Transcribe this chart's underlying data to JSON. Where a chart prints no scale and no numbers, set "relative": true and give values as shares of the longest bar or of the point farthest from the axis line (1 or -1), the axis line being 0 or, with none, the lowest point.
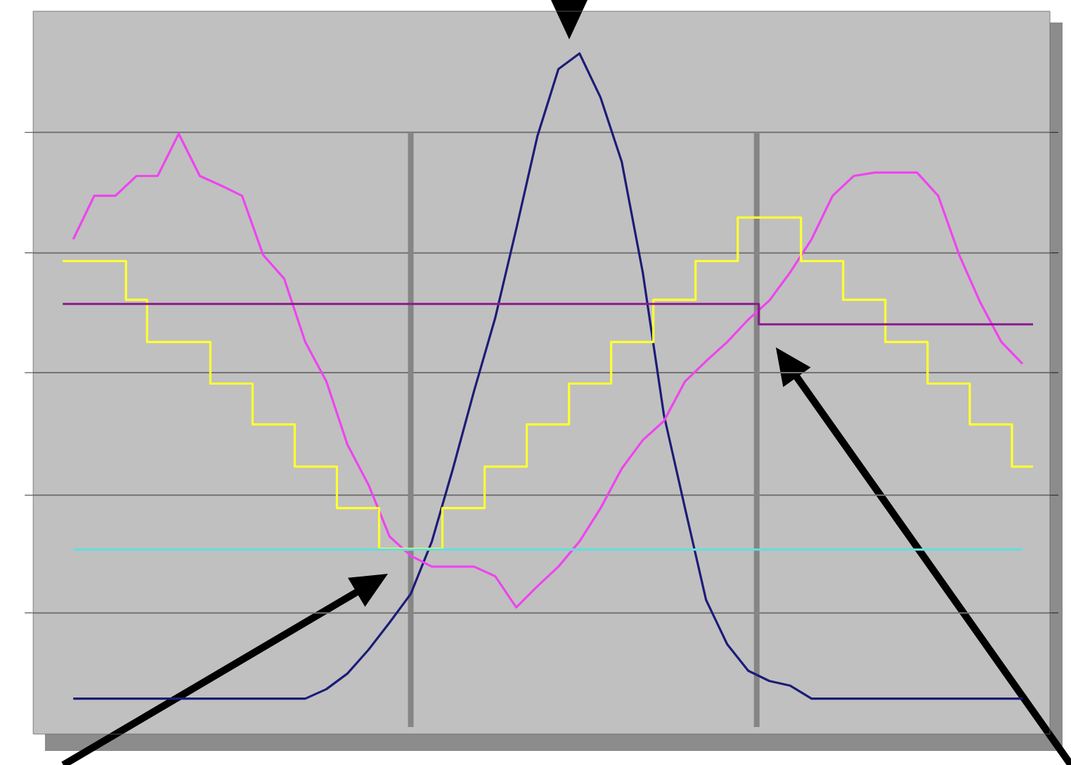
{
  "chart_data": {
    "type": "line",
    "relative": true,
    "grid": "y",
    "categories": [
      null,
      null,
      null,
      null,
      null,
      null,
      null,
      null,
      null,
      null,
      null,
      null,
      null,
      null,
      null,
      null,
      null,
      null,
      null,
      null,
      null,
      null,
      null,
      null,
      null,
      null,
      null,
      null,
      null,
      null,
      null,
      null,
      null,
      null,
      null,
      null,
      null,
      null,
      null,
      null,
      null,
      null,
      null,
      null,
      null,
      null
    ],
    "series": [
      {
        "color": "#1c1c78",
        "values": [
          0.052,
          0.052,
          0.052,
          0.052,
          0.052,
          0.052,
          0.052,
          0.052,
          0.052,
          0.052,
          0.052,
          0.052,
          0.066,
          0.089,
          0.124,
          0.164,
          0.206,
          0.283,
          0.39,
          0.504,
          0.611,
          0.742,
          0.878,
          0.977,
          1,
          0.935,
          0.841,
          0.678,
          0.469,
          0.332,
          0.197,
          0.132,
          0.093,
          0.078,
          0.071,
          0.052,
          0.052,
          0.052,
          0.052,
          0.052,
          0.052,
          0.052,
          0.052,
          0.052,
          0.052,
          0.052
        ]
      },
      {
        "color": "#ee44ee",
        "values": [
          0.727,
          0.791,
          0.791,
          0.82,
          0.82,
          0.882,
          0.82,
          0.806,
          0.791,
          0.704,
          0.669,
          0.576,
          0.518,
          0.425,
          0.366,
          0.29,
          0.262,
          0.246,
          0.246,
          0.246,
          0.232,
          0.186,
          0.217,
          0.246,
          0.283,
          0.332,
          0.39,
          0.432,
          0.46,
          0.518,
          0.548,
          0.576,
          0.609,
          0.637,
          0.679,
          0.727,
          0.791,
          0.82,
          0.825,
          0.825,
          0.825,
          0.791,
          0.704,
          0.634,
          0.576,
          0.544
        ]
      },
      {
        "type": "step",
        "color": "#ffff33",
        "values": [
          0.695,
          0.695,
          0.695,
          0.638,
          0.576,
          0.576,
          0.576,
          0.515,
          0.515,
          0.455,
          0.455,
          0.393,
          0.393,
          0.332,
          0.332,
          0.272,
          0.272,
          0.272,
          0.332,
          0.332,
          0.393,
          0.393,
          0.455,
          0.455,
          0.515,
          0.515,
          0.576,
          0.576,
          0.638,
          0.638,
          0.695,
          0.695,
          0.759,
          0.759,
          0.759,
          0.695,
          0.695,
          0.638,
          0.638,
          0.576,
          0.576,
          0.515,
          0.515,
          0.455,
          0.455,
          0.393
        ]
      },
      {
        "type": "step",
        "color": "#8b1a8b",
        "values": [
          0.632,
          0.632,
          0.632,
          0.632,
          0.632,
          0.632,
          0.632,
          0.632,
          0.632,
          0.632,
          0.632,
          0.632,
          0.632,
          0.632,
          0.632,
          0.632,
          0.632,
          0.632,
          0.632,
          0.632,
          0.632,
          0.632,
          0.632,
          0.632,
          0.632,
          0.632,
          0.632,
          0.632,
          0.632,
          0.632,
          0.632,
          0.632,
          0.632,
          0.602,
          0.602,
          0.602,
          0.602,
          0.602,
          0.602,
          0.602,
          0.602,
          0.602,
          0.602,
          0.602,
          0.602,
          0.602
        ]
      },
      {
        "color": "#66dddd",
        "values": [
          0.271,
          0.271,
          0.271,
          0.271,
          0.271,
          0.271,
          0.271,
          0.271,
          0.271,
          0.271,
          0.271,
          0.271,
          0.271,
          0.271,
          0.271,
          0.271,
          0.271,
          0.271,
          0.271,
          0.271,
          0.271,
          0.271,
          0.271,
          0.271,
          0.271,
          0.271,
          0.271,
          0.271,
          0.271,
          0.271,
          0.271,
          0.271,
          0.271,
          0.271,
          0.271,
          0.271,
          0.271,
          0.271,
          0.271,
          0.271,
          0.271,
          0.271,
          0.271,
          0.271,
          0.271,
          0.271
        ]
      }
    ]
  }
}
